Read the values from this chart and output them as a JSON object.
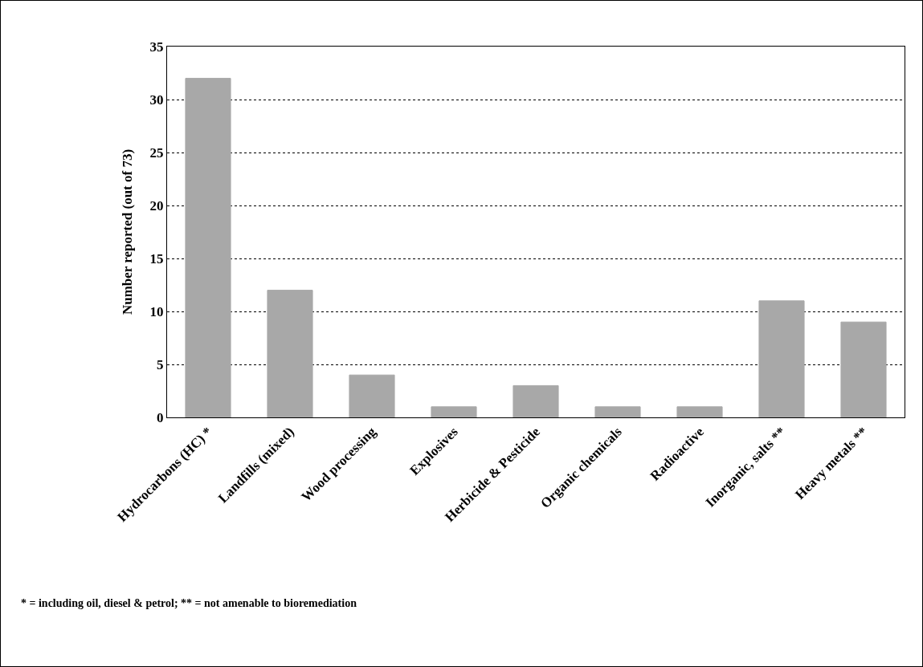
{
  "chart_data": {
    "type": "bar",
    "ylabel": "Number reported (out of 73)",
    "categories": [
      "Hydrocarbons (HC) *",
      "Landfills (mixed)",
      "Wood processing",
      "Explosives",
      "Herbicide & Pesticide",
      "Organic chemicals",
      "Radioactive",
      "Inorganic, salts **",
      "Heavy metals **"
    ],
    "values": [
      32,
      12,
      4,
      1,
      3,
      1,
      1,
      11,
      9
    ],
    "color": "#a8a8a8",
    "ylim": [
      0,
      35
    ],
    "yticks": [
      0,
      5,
      10,
      15,
      20,
      25,
      30,
      35
    ],
    "grid": "y",
    "line_style": "dotted",
    "legend": false,
    "annotations": [
      "* = including oil, diesel & petrol; ** = not amenable to bioremediation"
    ]
  }
}
